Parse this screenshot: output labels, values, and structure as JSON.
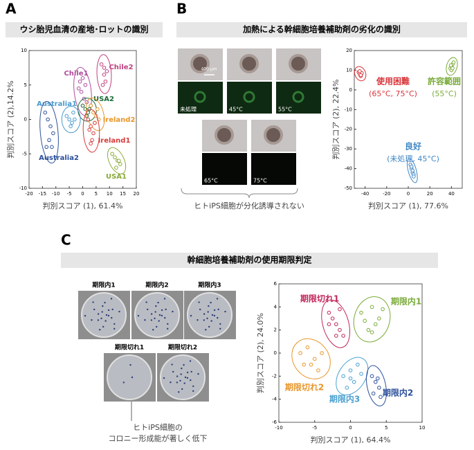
{
  "figure": {
    "panels": [
      {
        "label": "A",
        "title": "ウシ胎児血清の産地･ロットの識別"
      },
      {
        "label": "B",
        "title": "加熱による幹細胞培養補助剤の劣化の識別"
      },
      {
        "label": "C",
        "title": "幹細胞培養補助剤の使用期限判定"
      }
    ],
    "photos_b": {
      "scale": "400 μm",
      "labels": [
        "未処理",
        "45°C",
        "55°C",
        "65°C",
        "75°C"
      ],
      "caption": "ヒトiPS細胞が分化誘導されない"
    },
    "photos_c": {
      "labels": [
        "期限内1",
        "期限内2",
        "期限内3",
        "期限切れ1",
        "期限切れ2"
      ],
      "caption": [
        "ヒトiPS細胞の",
        "コロニー形成能が著しく低下"
      ]
    }
  },
  "chart_data": [
    {
      "type": "scatter",
      "xlabel": "判別スコア (1), 61.4%",
      "ylabel": "判別スコア (2),14.2%",
      "xlim": [
        -20,
        20
      ],
      "ylim": [
        -10,
        10
      ],
      "xticks": [
        -20,
        -15,
        -10,
        -5,
        0,
        5,
        10,
        15,
        20
      ],
      "yticks": [
        -10,
        -5,
        0,
        5,
        10
      ],
      "series": [
        {
          "name": "Chile1",
          "color": "#b04b9c",
          "x": [
            -1,
            0,
            1,
            -0.5,
            0.5,
            1.5,
            -1.5,
            0
          ],
          "values": [
            5.5,
            6,
            5,
            4,
            3,
            2.5,
            4.5,
            2
          ]
        },
        {
          "name": "Chile2",
          "color": "#c0407f",
          "x": [
            7,
            8,
            9,
            8.5,
            7.5,
            8
          ],
          "values": [
            8,
            7.5,
            7,
            5.5,
            5,
            6.5
          ]
        },
        {
          "name": "USA2",
          "color": "#1e6b3a",
          "x": [
            0,
            1,
            2,
            3,
            1.5,
            2.5
          ],
          "values": [
            2,
            1.5,
            1,
            2,
            0.5,
            1.5
          ]
        },
        {
          "name": "Ireland2",
          "color": "#e8962a",
          "x": [
            3,
            4,
            5,
            6,
            4.5,
            5.5
          ],
          "values": [
            2,
            1,
            0.5,
            0,
            -0.5,
            1.5
          ]
        },
        {
          "name": "Ireland1",
          "color": "#d63a3a",
          "x": [
            2,
            3,
            4,
            3.5,
            2.5,
            4.5,
            3
          ],
          "values": [
            0,
            -1,
            -2,
            -3,
            -1.5,
            -0.5,
            -3.5
          ]
        },
        {
          "name": "Australia1",
          "color": "#4a9bd0",
          "x": [
            -6,
            -5,
            -4,
            -3,
            -4.5,
            -3.5
          ],
          "values": [
            0.5,
            0,
            -0.5,
            0,
            -1,
            1
          ]
        },
        {
          "name": "Australia2",
          "color": "#2b4f9b",
          "x": [
            -14,
            -13,
            -12,
            -11,
            -12.5,
            -11.5,
            -13.5
          ],
          "values": [
            1,
            0,
            -1,
            -2,
            -3,
            -4,
            -4
          ]
        },
        {
          "name": "USA1",
          "color": "#8aaa3a",
          "x": [
            11,
            12,
            13,
            14,
            12.5,
            13.5
          ],
          "values": [
            -5,
            -5.5,
            -6,
            -6.5,
            -7,
            -6
          ]
        }
      ]
    },
    {
      "type": "scatter",
      "xlabel": "判別スコア (1), 77.6%",
      "ylabel": "判別スコア (2), 22.4%",
      "xlim": [
        -50,
        50
      ],
      "ylim": [
        -50,
        20
      ],
      "xticks": [
        -40,
        -20,
        0,
        20,
        40
      ],
      "yticks": [
        -50,
        -40,
        -30,
        -20,
        -10,
        0,
        10,
        20
      ],
      "series": [
        {
          "name": "使用困難",
          "annotation": "(65°C, 75°C)",
          "color": "#d9343a",
          "x": [
            -46,
            -45,
            -44,
            -43,
            -45,
            -44
          ],
          "values": [
            9,
            8,
            7,
            8.5,
            9.5,
            7.5
          ]
        },
        {
          "name": "許容範囲",
          "annotation": "(55°C)",
          "color": "#7aab3a",
          "x": [
            39,
            40,
            41,
            42,
            40,
            41,
            39.5
          ],
          "values": [
            11,
            12,
            13,
            14,
            10,
            11,
            12.5
          ]
        },
        {
          "name": "良好",
          "annotation": "(未処理, 45°C)",
          "color": "#3f86c4",
          "x": [
            2,
            3,
            4,
            5,
            3,
            4,
            5
          ],
          "values": [
            -38,
            -40,
            -42,
            -43,
            -39,
            -41,
            -44
          ]
        }
      ]
    },
    {
      "type": "scatter",
      "xlabel": "判別スコア (1), 64.4%",
      "ylabel": "判別スコア (2), 24.0%",
      "xlim": [
        -10,
        10
      ],
      "ylim": [
        -6,
        6
      ],
      "xticks": [
        -10,
        -5,
        0,
        5,
        10
      ],
      "yticks": [
        -6,
        -4,
        -2,
        0,
        2,
        4,
        6
      ],
      "series": [
        {
          "name": "期限切れ1",
          "color": "#c0265a",
          "x": [
            -3,
            -2.5,
            -2,
            -1.5,
            -1,
            -2,
            -3,
            -1.5
          ],
          "values": [
            3.5,
            3,
            2.5,
            2,
            1.5,
            1.5,
            2.5,
            3.8
          ]
        },
        {
          "name": "期限内1",
          "color": "#7aab3a",
          "x": [
            1.5,
            2,
            3,
            4,
            2.5,
            3.5,
            4.5,
            3
          ],
          "values": [
            3.5,
            2.8,
            4,
            3,
            2,
            2.5,
            3.8,
            1.8
          ]
        },
        {
          "name": "期限切れ2",
          "color": "#e8962a",
          "x": [
            -7,
            -6,
            -5,
            -4,
            -5.5,
            -4.5,
            -6.5
          ],
          "values": [
            0,
            0.5,
            -0.5,
            0,
            -1,
            -1.5,
            -1
          ]
        },
        {
          "name": "期限内3",
          "color": "#4aa0d0",
          "x": [
            -1,
            0,
            0.5,
            1,
            -0.5,
            0,
            1.5
          ],
          "values": [
            -2,
            -1.5,
            -2.5,
            -1,
            -3,
            -2.2,
            -1.8
          ]
        },
        {
          "name": "期限内2",
          "color": "#2b4f9b",
          "x": [
            3,
            3.5,
            4,
            3.2,
            3.8,
            4.2
          ],
          "values": [
            -2,
            -2.5,
            -3,
            -3.5,
            -2.2,
            -3.8
          ]
        }
      ]
    }
  ]
}
